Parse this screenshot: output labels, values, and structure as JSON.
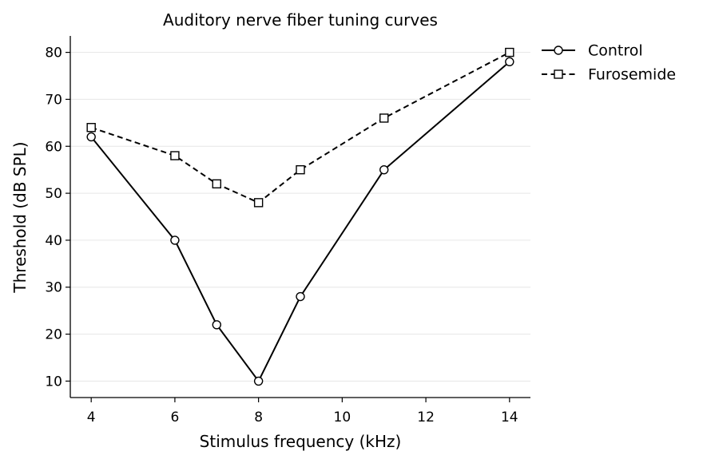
{
  "chart_data": {
    "type": "line",
    "title": "Auditory nerve fiber tuning curves",
    "xlabel": "Stimulus frequency (kHz)",
    "ylabel": "Threshold (dB SPL)",
    "xlim": [
      3.5,
      14.5
    ],
    "ylim": [
      6.5,
      83.5
    ],
    "xticks": [
      4,
      6,
      8,
      10,
      12,
      14
    ],
    "yticks": [
      10,
      20,
      30,
      40,
      50,
      60,
      70,
      80
    ],
    "grid": "horizontal",
    "legend_position": "top-right-outside",
    "x": [
      4,
      6,
      7,
      8,
      9,
      11,
      14
    ],
    "series": [
      {
        "name": "Control",
        "values": [
          62,
          40,
          22,
          10,
          28,
          55,
          78
        ],
        "line": "solid",
        "marker": "circle",
        "color": "#000000"
      },
      {
        "name": "Furosemide",
        "values": [
          64,
          58,
          52,
          48,
          55,
          66,
          80
        ],
        "line": "dashed",
        "marker": "square",
        "color": "#000000"
      }
    ]
  }
}
